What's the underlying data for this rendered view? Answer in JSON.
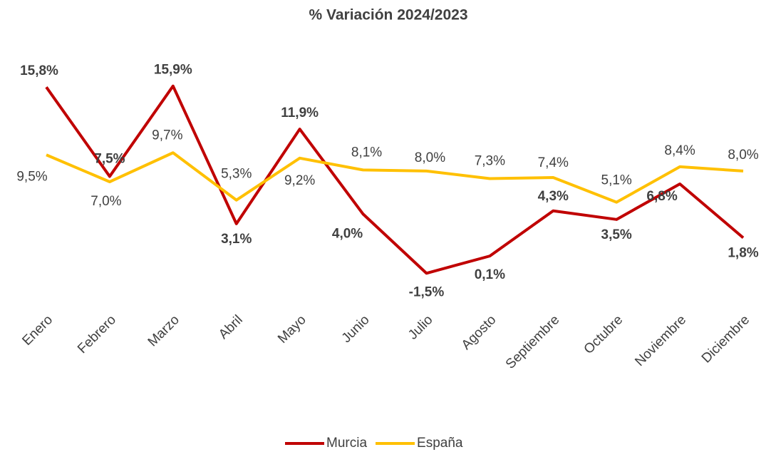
{
  "chart_data": {
    "type": "line",
    "title": "% Variación 2024/2023",
    "categories": [
      "Enero",
      "Febrero",
      "Marzo",
      "Abril",
      "Mayo",
      "Junio",
      "Julio",
      "Agosto",
      "Septiembre",
      "Octubre",
      "Noviembre",
      "Diciembre"
    ],
    "series": [
      {
        "name": "Murcia",
        "color": "#c00000",
        "values": [
          15.8,
          7.5,
          15.9,
          3.1,
          11.9,
          4.0,
          -1.5,
          0.1,
          4.3,
          3.5,
          6.8,
          1.8
        ],
        "value_labels": [
          "15,8%",
          "7,5%",
          "15,9%",
          "3,1%",
          "11,9%",
          "4,0%",
          "-1,5%",
          "0,1%",
          "4,3%",
          "3,5%",
          "6,8%",
          "1,8%"
        ]
      },
      {
        "name": "España",
        "color": "#ffc000",
        "values": [
          9.5,
          7.0,
          9.7,
          5.3,
          9.2,
          8.1,
          8.0,
          7.3,
          7.4,
          5.1,
          8.4,
          8.0
        ],
        "value_labels": [
          "9,5%",
          "7,0%",
          "9,7%",
          "5,3%",
          "9,2%",
          "8,1%",
          "8,0%",
          "7,3%",
          "7,4%",
          "5,1%",
          "8,4%",
          "8,0%"
        ]
      }
    ],
    "ylim": [
      -4,
      18
    ],
    "legend": "bottom"
  }
}
